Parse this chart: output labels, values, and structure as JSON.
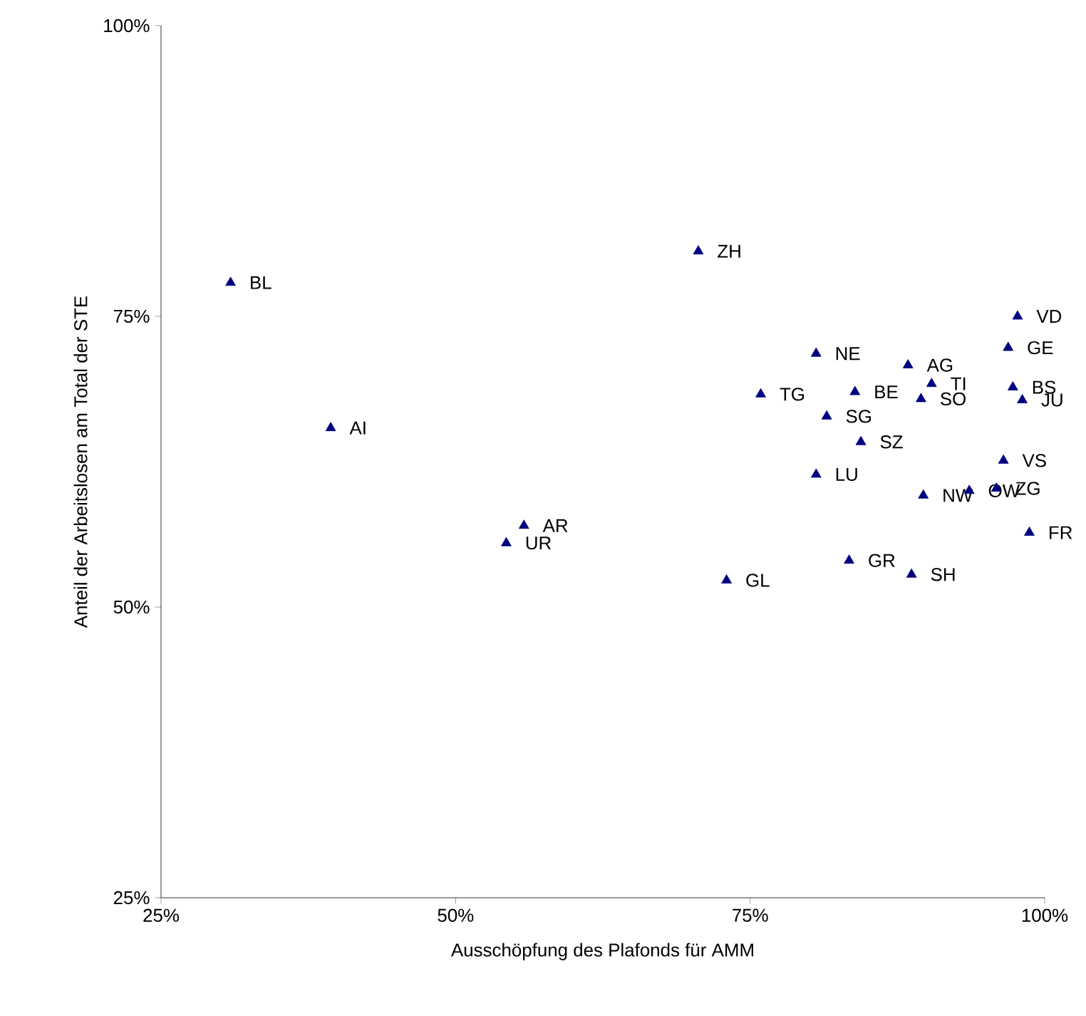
{
  "chart_data": {
    "type": "scatter",
    "xlabel": "Ausschöpfung des Plafonds für AMM",
    "ylabel": "Anteil der Arbeitslosen am Total der STE",
    "xlim": [
      25,
      100
    ],
    "ylim": [
      25,
      100
    ],
    "xticks": [
      {
        "value": 25,
        "label": "25%"
      },
      {
        "value": 50,
        "label": "50%"
      },
      {
        "value": 75,
        "label": "75%"
      },
      {
        "value": 100,
        "label": "100%"
      }
    ],
    "yticks": [
      {
        "value": 25,
        "label": "25%"
      },
      {
        "value": 50,
        "label": "50%"
      },
      {
        "value": 75,
        "label": "75%"
      },
      {
        "value": 100,
        "label": "100%"
      }
    ],
    "grid": false,
    "marker": "triangle",
    "series": [
      {
        "color": "#000080",
        "x": [
          30.9,
          39.4,
          70.6,
          55.8,
          54.3,
          73.0,
          75.9,
          80.6,
          83.9,
          81.5,
          84.4,
          80.6,
          83.4,
          88.7,
          88.4,
          90.4,
          89.5,
          89.7,
          93.6,
          97.7,
          96.9,
          97.3,
          98.1,
          96.5,
          95.9,
          98.7
        ],
        "values": [
          77.9,
          65.4,
          80.6,
          57.0,
          55.5,
          52.3,
          68.3,
          71.8,
          68.5,
          66.4,
          64.2,
          61.4,
          54.0,
          52.8,
          70.8,
          69.2,
          67.9,
          59.6,
          60.0,
          75.0,
          72.3,
          68.9,
          67.8,
          62.6,
          60.2,
          56.4
        ]
      }
    ],
    "annotations": [
      {
        "text": "BL",
        "x": 30.9,
        "y": 77.9
      },
      {
        "text": "AI",
        "x": 39.4,
        "y": 65.4
      },
      {
        "text": "ZH",
        "x": 70.6,
        "y": 80.6
      },
      {
        "text": "AR",
        "x": 55.8,
        "y": 57.0
      },
      {
        "text": "UR",
        "x": 54.3,
        "y": 55.5
      },
      {
        "text": "GL",
        "x": 73.0,
        "y": 52.3
      },
      {
        "text": "TG",
        "x": 75.9,
        "y": 68.3
      },
      {
        "text": "NE",
        "x": 80.6,
        "y": 71.8
      },
      {
        "text": "BE",
        "x": 83.9,
        "y": 68.5
      },
      {
        "text": "SG",
        "x": 81.5,
        "y": 66.4
      },
      {
        "text": "SZ",
        "x": 84.4,
        "y": 64.2
      },
      {
        "text": "LU",
        "x": 80.6,
        "y": 61.4
      },
      {
        "text": "GR",
        "x": 83.4,
        "y": 54.0
      },
      {
        "text": "SH",
        "x": 88.7,
        "y": 52.8
      },
      {
        "text": "AG",
        "x": 88.4,
        "y": 70.8
      },
      {
        "text": "TI",
        "x": 90.4,
        "y": 69.2
      },
      {
        "text": "SO",
        "x": 89.5,
        "y": 67.9
      },
      {
        "text": "NW",
        "x": 89.7,
        "y": 59.6
      },
      {
        "text": "OW",
        "x": 93.6,
        "y": 60.0
      },
      {
        "text": "VD",
        "x": 97.7,
        "y": 75.0
      },
      {
        "text": "GE",
        "x": 96.9,
        "y": 72.3
      },
      {
        "text": "BS",
        "x": 97.3,
        "y": 68.9
      },
      {
        "text": "JU",
        "x": 98.1,
        "y": 67.8
      },
      {
        "text": "VS",
        "x": 96.5,
        "y": 62.6
      },
      {
        "text": "ZG",
        "x": 95.9,
        "y": 60.2
      },
      {
        "text": "FR",
        "x": 98.7,
        "y": 56.4
      }
    ]
  }
}
